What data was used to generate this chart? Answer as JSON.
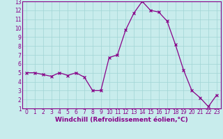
{
  "x": [
    0,
    1,
    2,
    3,
    4,
    5,
    6,
    7,
    8,
    9,
    10,
    11,
    12,
    13,
    14,
    15,
    16,
    17,
    18,
    19,
    20,
    21,
    22,
    23
  ],
  "y": [
    5.0,
    5.0,
    4.8,
    4.6,
    5.0,
    4.7,
    5.0,
    4.5,
    3.0,
    3.0,
    6.7,
    7.0,
    9.8,
    11.7,
    13.0,
    12.0,
    11.8,
    10.8,
    8.2,
    5.3,
    3.0,
    2.2,
    1.2,
    2.5
  ],
  "line_color": "#880088",
  "marker": "x",
  "marker_size": 3,
  "linewidth": 0.9,
  "bg_color": "#c8ecec",
  "grid_color": "#a0d4d4",
  "xlabel": "Windchill (Refroidissement éolien,°C)",
  "xlim": [
    -0.5,
    23.5
  ],
  "ylim": [
    1,
    13
  ],
  "yticks": [
    1,
    2,
    3,
    4,
    5,
    6,
    7,
    8,
    9,
    10,
    11,
    12,
    13
  ],
  "xticks": [
    0,
    1,
    2,
    3,
    4,
    5,
    6,
    7,
    8,
    9,
    10,
    11,
    12,
    13,
    14,
    15,
    16,
    17,
    18,
    19,
    20,
    21,
    22,
    23
  ],
  "tick_fontsize": 5.5,
  "xlabel_fontsize": 6.5,
  "axis_color": "#880088",
  "spine_color": "#880088",
  "bottom_bar_color": "#880088"
}
